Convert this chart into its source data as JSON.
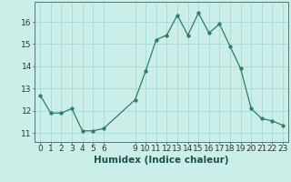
{
  "x": [
    0,
    1,
    2,
    3,
    4,
    5,
    6,
    9,
    10,
    11,
    12,
    13,
    14,
    15,
    16,
    17,
    18,
    19,
    20,
    21,
    22,
    23
  ],
  "y": [
    12.7,
    11.9,
    11.9,
    12.1,
    11.1,
    11.1,
    11.2,
    12.5,
    13.8,
    15.2,
    15.4,
    16.3,
    15.4,
    16.4,
    15.5,
    15.9,
    14.9,
    13.9,
    12.1,
    11.65,
    11.55,
    11.35
  ],
  "line_color": "#2e7b6e",
  "marker_color": "#2e7b6e",
  "bg_color": "#cceee8",
  "grid_color": "#aadddd",
  "xlabel": "Humidex (Indice chaleur)",
  "xlabel_fontsize": 7.5,
  "xticks": [
    0,
    1,
    2,
    3,
    4,
    5,
    6,
    9,
    10,
    11,
    12,
    13,
    14,
    15,
    16,
    17,
    18,
    19,
    20,
    21,
    22,
    23
  ],
  "yticks": [
    11,
    12,
    13,
    14,
    15,
    16
  ],
  "ylim": [
    10.6,
    16.9
  ],
  "xlim": [
    -0.5,
    23.5
  ],
  "tick_fontsize": 6.5
}
